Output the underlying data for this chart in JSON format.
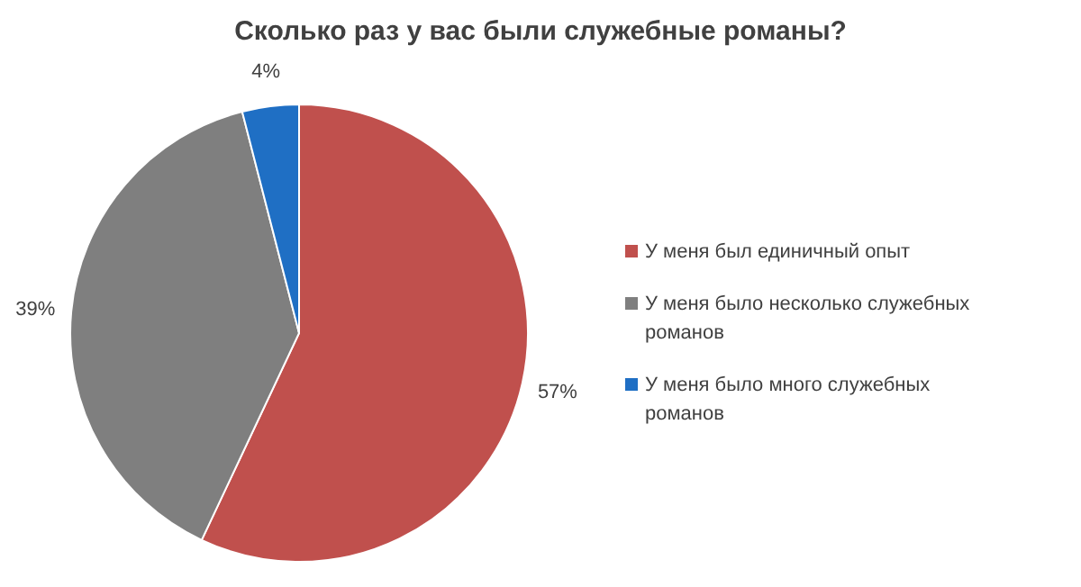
{
  "chart_data": {
    "type": "pie",
    "title": "Сколько раз у вас были служебные романы?",
    "categories": [
      "У меня был единичный опыт",
      "У меня было несколько служебных романов",
      "У меня было много служебных романов"
    ],
    "values": [
      57,
      39,
      4
    ],
    "colors": [
      "#c0504d",
      "#7f7f7f",
      "#1f6fc4"
    ],
    "value_labels": [
      "57%",
      "39%",
      "4%"
    ],
    "legend": "right"
  }
}
